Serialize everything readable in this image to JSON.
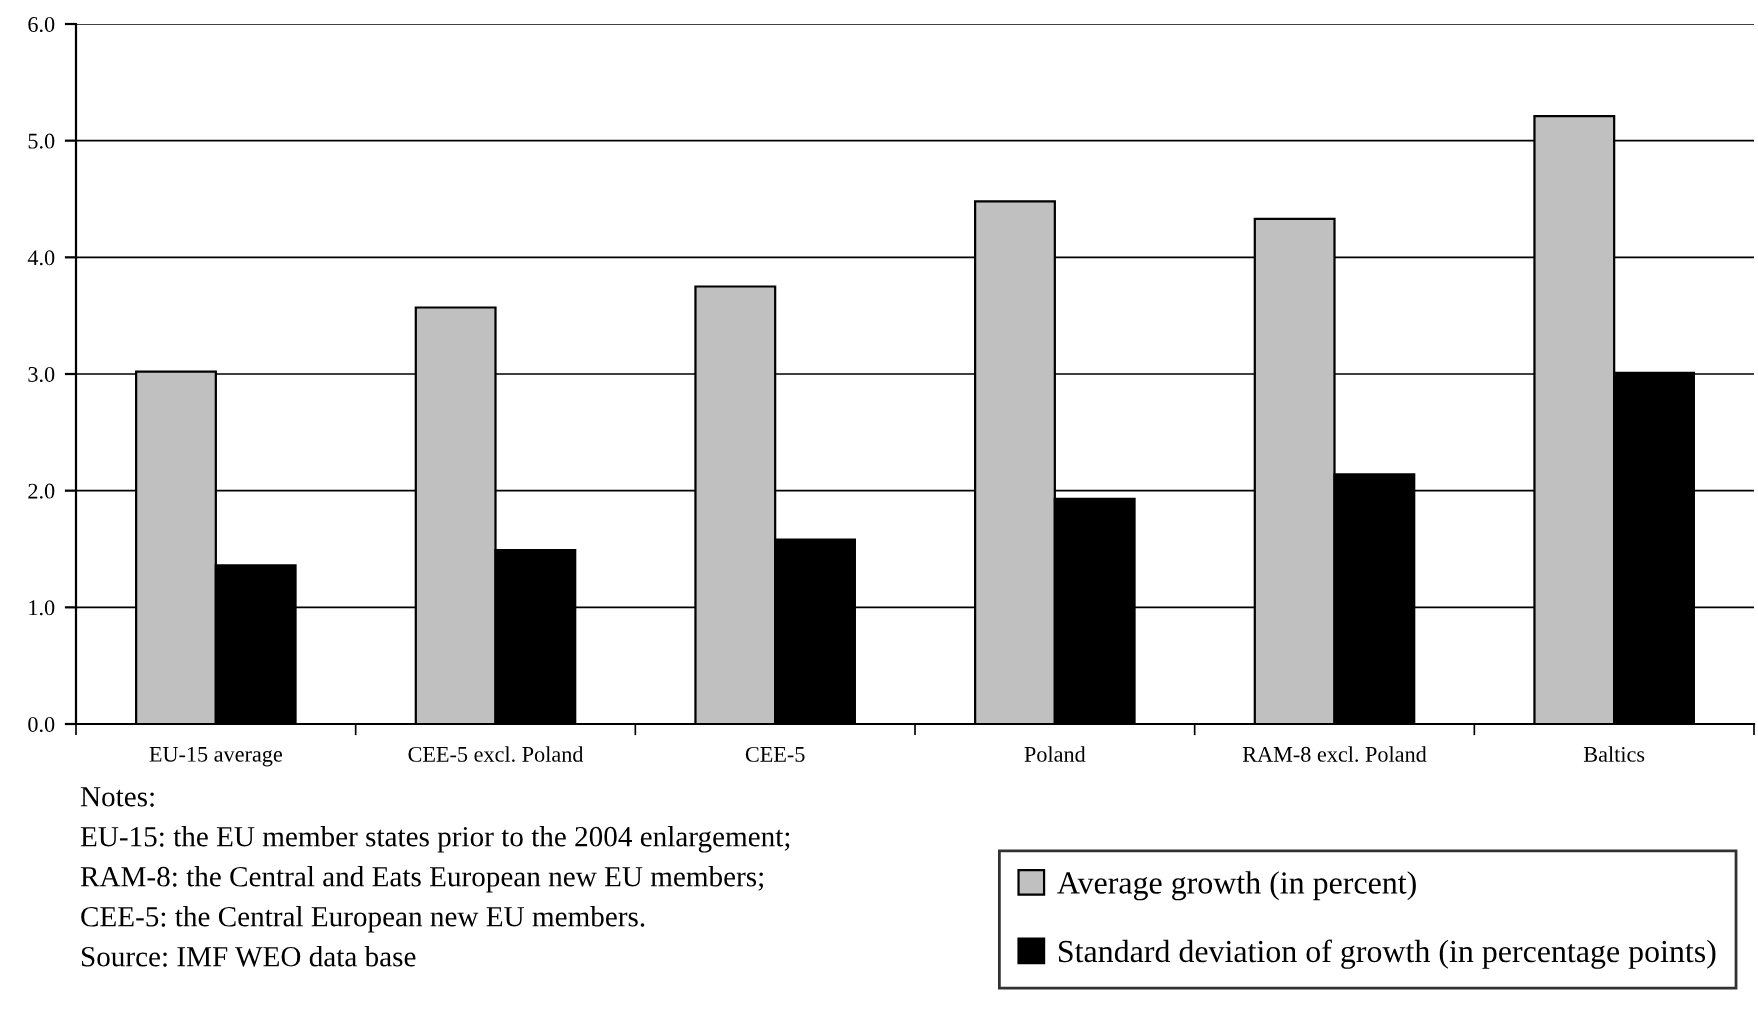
{
  "chart_data": {
    "type": "bar",
    "categories": [
      "EU-15 average",
      "CEE-5 excl. Poland",
      "CEE-5",
      "Poland",
      "RAM-8 excl. Poland",
      "Baltics"
    ],
    "series": [
      {
        "name": "Average growth (in percent)",
        "color": "#c0c0c0",
        "values": [
          3.02,
          3.57,
          3.75,
          4.48,
          4.33,
          5.21
        ]
      },
      {
        "name": "Standard deviation of growth (in percentage points)",
        "color": "#000000",
        "values": [
          1.36,
          1.49,
          1.58,
          1.93,
          2.14,
          3.01
        ]
      }
    ],
    "ylim": [
      0,
      6
    ],
    "yticks": [
      {
        "value": 0,
        "label": "0.0"
      },
      {
        "value": 1,
        "label": "1.0"
      },
      {
        "value": 2,
        "label": "2.0"
      },
      {
        "value": 3,
        "label": "3.0"
      },
      {
        "value": 4,
        "label": "4.0"
      },
      {
        "value": 5,
        "label": "5.0"
      },
      {
        "value": 6,
        "label": "6.0"
      }
    ],
    "grid": "y",
    "legend": "bottom right",
    "annotations": [
      "Notes:",
      "EU-15: the EU member states prior to the 2004 enlargement;",
      "RAM-8: the Central and Eats European new EU members;",
      "CEE-5: the Central European new EU members.",
      "Source: IMF WEO data base"
    ]
  }
}
